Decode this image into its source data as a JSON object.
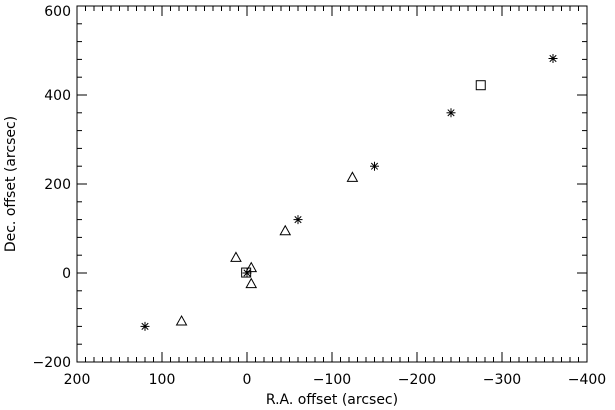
{
  "chart_data": {
    "type": "scatter",
    "title": "",
    "xlabel": "R.A. offset (arcsec)",
    "ylabel": "Dec. offset (arcsec)",
    "xlim": [
      200,
      -400
    ],
    "ylim": [
      -200,
      600
    ],
    "x_ticks": [
      200,
      100,
      0,
      -100,
      -200,
      -300,
      -400
    ],
    "x_tick_labels": [
      "200",
      "100",
      "0",
      "−100",
      "−200",
      "−300",
      "−400"
    ],
    "x_minor_step": 10,
    "y_ticks": [
      -200,
      0,
      200,
      400,
      600
    ],
    "y_tick_labels": [
      "−200",
      "0",
      "200",
      "400",
      "600"
    ],
    "y_minor_step": 40,
    "grid": false,
    "legend": "none",
    "series": [
      {
        "marker": "asterisk",
        "x": [
          120,
          0,
          -60,
          -150,
          -240,
          -360
        ],
        "y": [
          -120,
          0,
          120,
          240,
          360,
          482
        ]
      },
      {
        "marker": "triangle",
        "x": [
          77,
          13,
          -5,
          -5,
          -45,
          -124
        ],
        "y": [
          -108,
          35,
          12,
          -24,
          95,
          215
        ]
      },
      {
        "marker": "square",
        "x": [
          1,
          -275
        ],
        "y": [
          1,
          422
        ]
      }
    ]
  }
}
